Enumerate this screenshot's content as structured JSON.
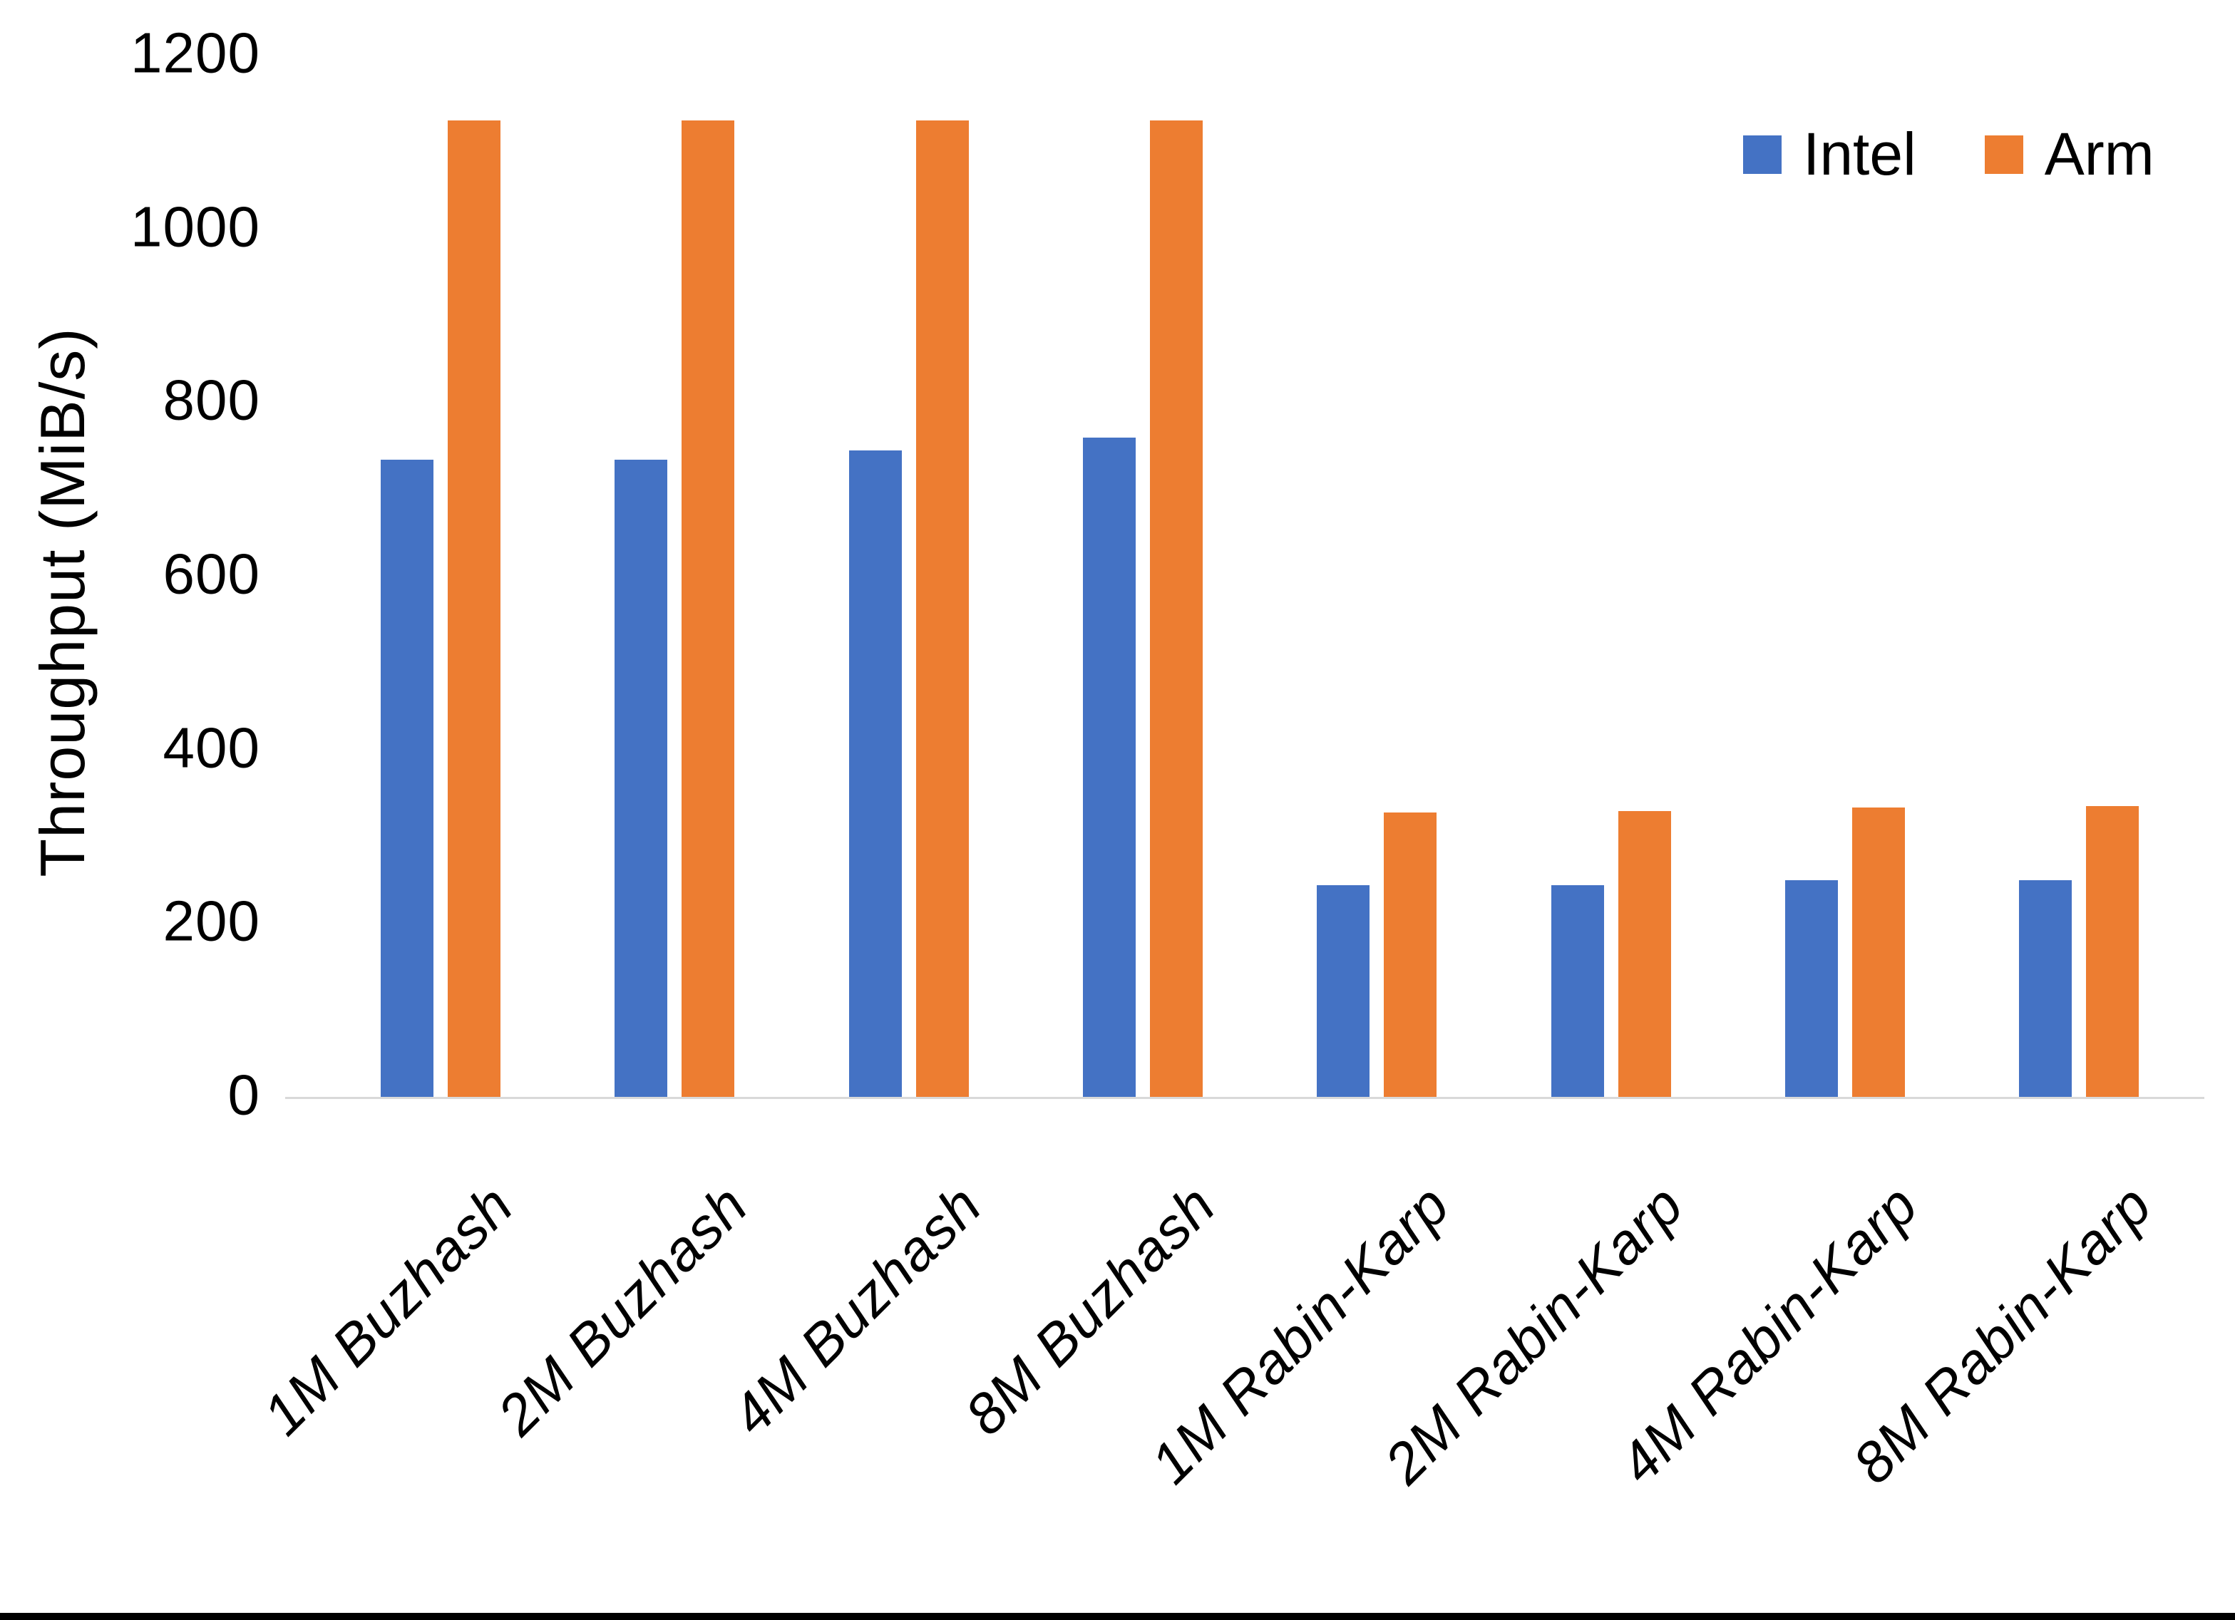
{
  "chart_data": {
    "type": "bar",
    "title": "",
    "xlabel": "",
    "ylabel": "Throughput (MiB/s)",
    "ylim": [
      0,
      1200
    ],
    "yticks": [
      0,
      200,
      400,
      600,
      800,
      1000,
      1200
    ],
    "grid": false,
    "legend_position": "top-right",
    "categories": [
      "1M Buzhash",
      "2M Buzhash",
      "4M Buzhash",
      "8M Buzhash",
      "1M Rabin-Karp",
      "2M Rabin-Karp",
      "4M Rabin-Karp",
      "8M Rabin-Karp"
    ],
    "series": [
      {
        "name": "Intel",
        "color": "#4472C4",
        "values": [
          735,
          735,
          745,
          760,
          245,
          245,
          250,
          250
        ]
      },
      {
        "name": "Arm",
        "color": "#ED7D31",
        "values": [
          1125,
          1125,
          1125,
          1125,
          328,
          330,
          334,
          336
        ]
      }
    ],
    "axis_line_color": "#D9D9D9",
    "text_color": "#000000",
    "background_color": "#FFFFFF"
  }
}
